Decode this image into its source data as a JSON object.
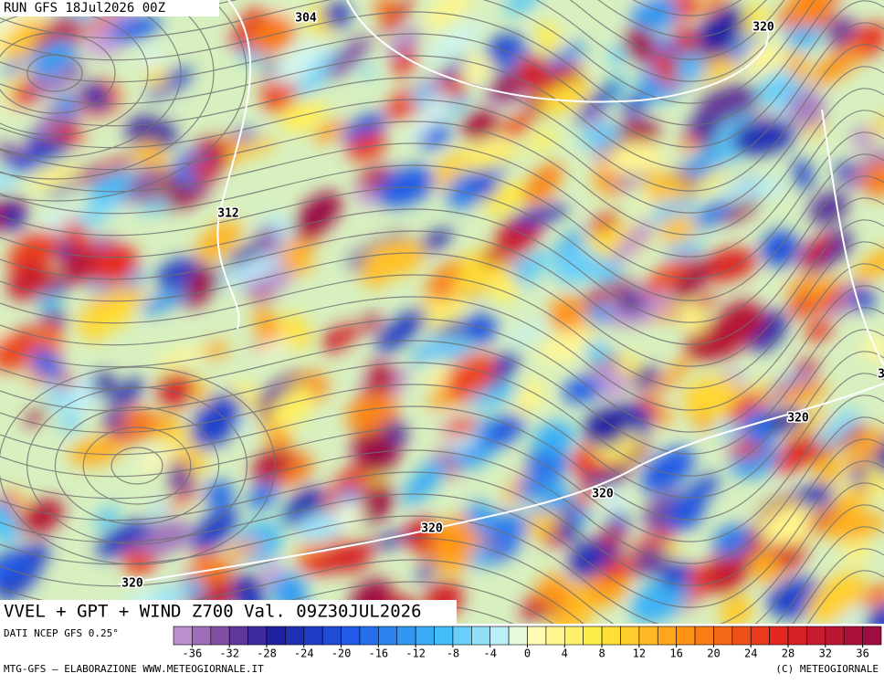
{
  "header": {
    "run": "RUN GFS 18Jul2026 00Z"
  },
  "map": {
    "contour_labels": [
      "304",
      "320",
      "312",
      "320",
      "320",
      "320",
      "320",
      "3"
    ],
    "field_title": "VVEL + GPT + WIND Z700 Val. 09Z30JUL2026"
  },
  "colorbar": {
    "source": "DATI NCEP GFS 0.25°",
    "range": [
      -38,
      38
    ],
    "ticks": [
      -36,
      -32,
      -28,
      -24,
      -20,
      -16,
      -12,
      -8,
      -4,
      0,
      4,
      8,
      12,
      16,
      20,
      24,
      28,
      32,
      36
    ]
  },
  "footer": {
    "left": "MTG-GFS — ELABORAZIONE WWW.METEOGIORNALE.IT",
    "right": "(C) METEOGIORNALE"
  }
}
